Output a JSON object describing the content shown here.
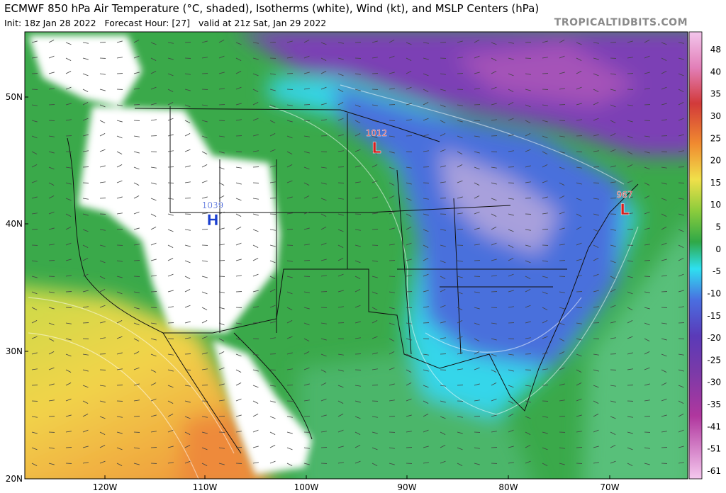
{
  "header": {
    "title": "ECMWF 850 hPa Air Temperature (°C, shaded), Isotherms (white), Wind (kt), and MSLP Centers (hPa)",
    "subtitle": "Init: 18z Jan 28 2022   Forecast Hour: [27]   valid at 21z Sat, Jan 29 2022",
    "watermark": "TROPICALTIDBITS.COM"
  },
  "map": {
    "lat_labels": [
      "50N",
      "40N",
      "30N",
      "20N"
    ],
    "lon_labels": [
      "120W",
      "110W",
      "100W",
      "90W",
      "80W",
      "70W"
    ],
    "pressure_centers": [
      {
        "value": "1012",
        "symbol": "L"
      },
      {
        "value": "1039",
        "symbol": "H"
      },
      {
        "value": "967",
        "symbol": "L"
      }
    ]
  },
  "colorbar": {
    "labels": [
      "48",
      "40",
      "35",
      "30",
      "25",
      "20",
      "15",
      "10",
      "5",
      "0",
      "-5",
      "-10",
      "-15",
      "-20",
      "-25",
      "-30",
      "-35",
      "-41",
      "-51",
      "-61"
    ]
  }
}
